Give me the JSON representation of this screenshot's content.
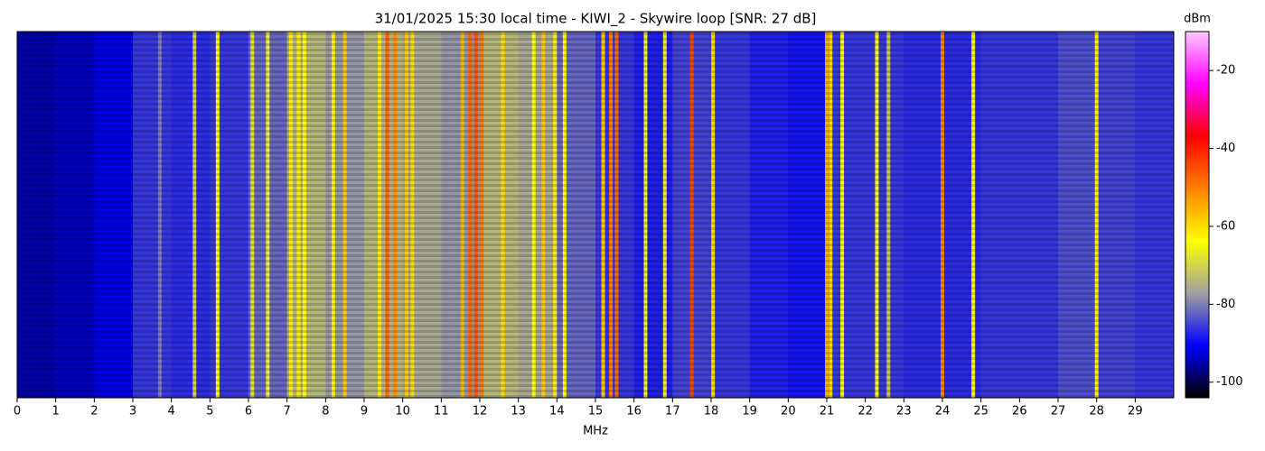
{
  "chart_data": {
    "type": "heatmap",
    "title": "31/01/2025 15:30 local time - KIWI_2 - Skywire loop [SNR: 27 dB]",
    "xlabel": "MHz",
    "colorbar_label": "dBm",
    "xlim": [
      0,
      30
    ],
    "xticks": [
      0,
      1,
      2,
      3,
      4,
      5,
      6,
      7,
      8,
      9,
      10,
      11,
      12,
      13,
      14,
      15,
      16,
      17,
      18,
      19,
      20,
      21,
      22,
      23,
      24,
      25,
      26,
      27,
      28,
      29
    ],
    "clim": [
      -104,
      -10
    ],
    "cticks": [
      -100,
      -80,
      -60,
      -40,
      -20
    ],
    "colormap": [
      "#000000",
      "#0000ff",
      "#a0a0a0",
      "#ffff00",
      "#ff8000",
      "#ff0000",
      "#ff00ff",
      "#ffc8ff"
    ],
    "x": [
      0.5,
      1.5,
      2.5,
      3.5,
      4.5,
      5.5,
      6.5,
      7.5,
      8.5,
      9.5,
      10.5,
      11.5,
      12.5,
      13.5,
      14.5,
      15.5,
      16.5,
      17.5,
      18.5,
      19.5,
      20.5,
      21.5,
      22.5,
      23.5,
      24.5,
      25.5,
      26.5,
      27.5,
      28.5,
      29.5
    ],
    "values": [
      -95,
      -94,
      -92,
      -86,
      -87,
      -86,
      -82,
      -74,
      -78,
      -74,
      -76,
      -78,
      -74,
      -76,
      -82,
      -86,
      -88,
      -85,
      -86,
      -88,
      -89,
      -86,
      -86,
      -87,
      -87,
      -86,
      -86,
      -84,
      -85,
      -86
    ],
    "signals": {
      "x": [
        3.7,
        4.6,
        5.2,
        6.1,
        6.5,
        7.1,
        7.3,
        7.45,
        8.2,
        8.5,
        9.4,
        9.6,
        9.8,
        10.1,
        10.25,
        11.55,
        11.75,
        11.9,
        12.05,
        12.6,
        13.4,
        13.65,
        13.95,
        14.2,
        15.2,
        15.4,
        15.55,
        16.3,
        16.8,
        17.5,
        18.05,
        21.0,
        21.1,
        21.4,
        22.3,
        22.6,
        24.0,
        24.8,
        28.0
      ],
      "values": [
        -80,
        -70,
        -64,
        -68,
        -66,
        -62,
        -62,
        -64,
        -62,
        -58,
        -62,
        -48,
        -52,
        -58,
        -60,
        -56,
        -48,
        -46,
        -50,
        -60,
        -64,
        -58,
        -62,
        -64,
        -58,
        -50,
        -48,
        -66,
        -66,
        -44,
        -60,
        -55,
        -60,
        -64,
        -64,
        -72,
        -50,
        -64,
        -62
      ]
    }
  }
}
